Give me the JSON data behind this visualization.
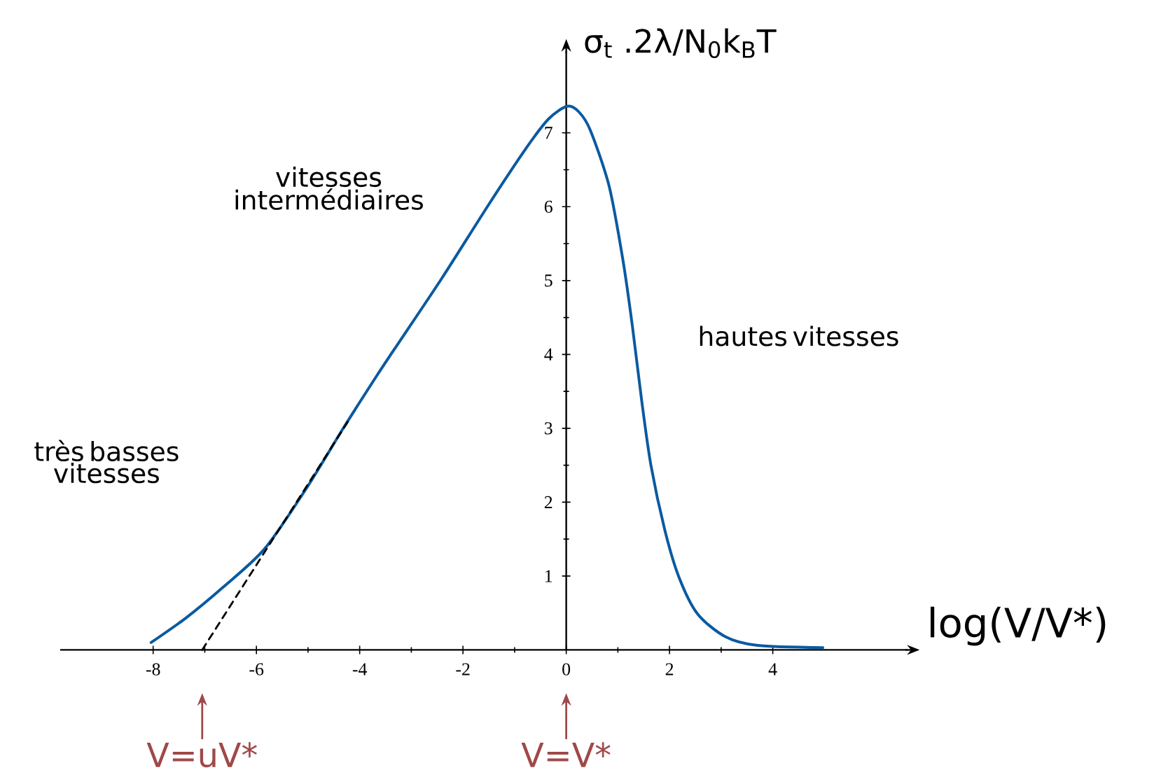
{
  "chart_data": {
    "type": "line",
    "xlabel": "log(V/V*)",
    "ylabel": "σ$_{t}$ .2λ/N$_{0}$k$_{B}$T",
    "xlim": [
      -9.8,
      6.6
    ],
    "ylim": [
      0,
      8.1
    ],
    "xticks": [
      -8,
      -6,
      -4,
      -2,
      0,
      2,
      4
    ],
    "yticks": [
      1,
      2,
      3,
      4,
      5,
      6,
      7
    ],
    "marker": "none",
    "series": [
      {
        "color": "#0a5aa0",
        "x": [
          -8.04,
          -7.37,
          -6.66,
          -5.84,
          -5.03,
          -4.31,
          -3.68,
          -3.32,
          -2.42,
          -1.51,
          -0.79,
          -0.34,
          0.02,
          0.25,
          0.47,
          0.83,
          1.1,
          1.28,
          1.46,
          1.64,
          1.91,
          2.18,
          2.54,
          3.08,
          3.71,
          4.97
        ],
        "values": [
          0.1,
          0.43,
          0.84,
          1.37,
          2.19,
          3.01,
          3.7,
          4.08,
          5.02,
          6.02,
          6.78,
          7.19,
          7.36,
          7.28,
          7.03,
          6.28,
          5.27,
          4.39,
          3.38,
          2.5,
          1.62,
          0.99,
          0.49,
          0.18,
          0.06,
          0.03
        ]
      },
      {
        "color": "#000000",
        "line_style": "dashed",
        "x": [
          -7.05,
          -4.22
        ],
        "values": [
          0,
          3.1
        ]
      }
    ],
    "annotations": [
      "vitesses intermédiaires",
      "hautes vitesses",
      "très basses vitesses",
      {
        "text": "V=uV*",
        "x": -7.05,
        "y": 0
      },
      "V=V*"
    ]
  }
}
